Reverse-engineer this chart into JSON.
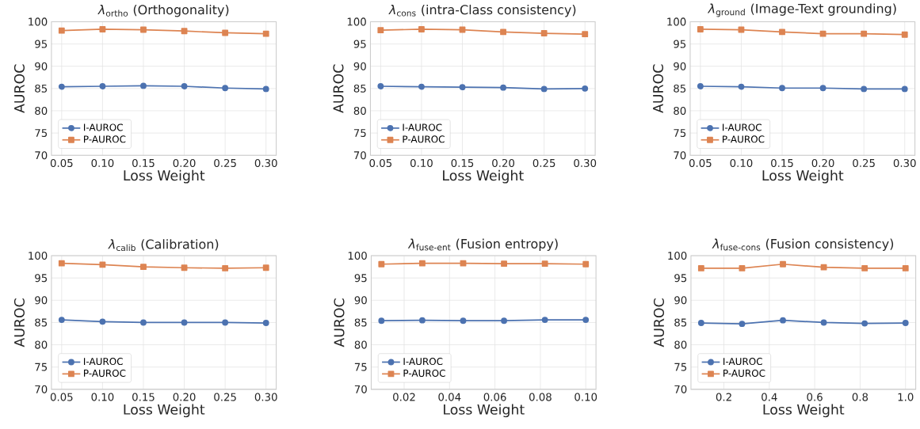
{
  "chart_data": [
    {
      "type": "line",
      "title": "*λ*$_{ortho}$ (Orthogonality)",
      "xlabel": "Loss Weight",
      "ylabel": "AUROC",
      "x": [
        0.05,
        0.1,
        0.15,
        0.2,
        0.25,
        0.3
      ],
      "xlim": [
        0.0375,
        0.3125
      ],
      "ylim": [
        70,
        100
      ],
      "xticks": [
        {
          "value": 0.05,
          "label": "0.05"
        },
        {
          "value": 0.1,
          "label": "0.10"
        },
        {
          "value": 0.15,
          "label": "0.15"
        },
        {
          "value": 0.2,
          "label": "0.20"
        },
        {
          "value": 0.25,
          "label": "0.25"
        },
        {
          "value": 0.3,
          "label": "0.30"
        }
      ],
      "yticks": [
        70,
        75,
        80,
        85,
        90,
        95,
        100
      ],
      "grid": true,
      "legend": "bottom left",
      "line_style": "solid",
      "series": [
        {
          "name": "I-AUROC",
          "color": "#4c72b0",
          "marker": "circle",
          "values": [
            85.4,
            85.5,
            85.6,
            85.5,
            85.1,
            84.9
          ]
        },
        {
          "name": "P-AUROC",
          "color": "#dd8452",
          "marker": "square",
          "values": [
            98.0,
            98.3,
            98.2,
            97.9,
            97.5,
            97.3
          ]
        }
      ]
    },
    {
      "type": "line",
      "title": "*λ*$_{cons}$ (intra-Class consistency)",
      "xlabel": "Loss Weight",
      "ylabel": "AUROC",
      "x": [
        0.05,
        0.1,
        0.15,
        0.2,
        0.25,
        0.3
      ],
      "xlim": [
        0.0375,
        0.3125
      ],
      "ylim": [
        70,
        100
      ],
      "xticks": [
        {
          "value": 0.05,
          "label": "0.05"
        },
        {
          "value": 0.1,
          "label": "0.10"
        },
        {
          "value": 0.15,
          "label": "0.15"
        },
        {
          "value": 0.2,
          "label": "0.20"
        },
        {
          "value": 0.25,
          "label": "0.25"
        },
        {
          "value": 0.3,
          "label": "0.30"
        }
      ],
      "yticks": [
        70,
        75,
        80,
        85,
        90,
        95,
        100
      ],
      "grid": true,
      "legend": "bottom left",
      "line_style": "solid",
      "series": [
        {
          "name": "I-AUROC",
          "color": "#4c72b0",
          "marker": "circle",
          "values": [
            85.5,
            85.4,
            85.3,
            85.2,
            84.9,
            85.0
          ]
        },
        {
          "name": "P-AUROC",
          "color": "#dd8452",
          "marker": "square",
          "values": [
            98.1,
            98.3,
            98.2,
            97.7,
            97.4,
            97.2
          ]
        }
      ]
    },
    {
      "type": "line",
      "title": "*λ*$_{ground}$ (Image-Text grounding)",
      "xlabel": "Loss Weight",
      "ylabel": "AUROC",
      "x": [
        0.05,
        0.1,
        0.15,
        0.2,
        0.25,
        0.3
      ],
      "xlim": [
        0.0375,
        0.3125
      ],
      "ylim": [
        70,
        100
      ],
      "xticks": [
        {
          "value": 0.05,
          "label": "0.05"
        },
        {
          "value": 0.1,
          "label": "0.10"
        },
        {
          "value": 0.15,
          "label": "0.15"
        },
        {
          "value": 0.2,
          "label": "0.20"
        },
        {
          "value": 0.25,
          "label": "0.25"
        },
        {
          "value": 0.3,
          "label": "0.30"
        }
      ],
      "yticks": [
        70,
        75,
        80,
        85,
        90,
        95,
        100
      ],
      "grid": true,
      "legend": "bottom left",
      "line_style": "solid",
      "series": [
        {
          "name": "I-AUROC",
          "color": "#4c72b0",
          "marker": "circle",
          "values": [
            85.5,
            85.4,
            85.1,
            85.1,
            84.9,
            84.9
          ]
        },
        {
          "name": "P-AUROC",
          "color": "#dd8452",
          "marker": "square",
          "values": [
            98.3,
            98.2,
            97.7,
            97.3,
            97.3,
            97.1
          ]
        }
      ]
    },
    {
      "type": "line",
      "title": "*λ*$_{calib}$ (Calibration)",
      "xlabel": "Loss Weight",
      "ylabel": "AUROC",
      "x": [
        0.05,
        0.1,
        0.15,
        0.2,
        0.25,
        0.3
      ],
      "xlim": [
        0.0375,
        0.3125
      ],
      "ylim": [
        70,
        100
      ],
      "xticks": [
        {
          "value": 0.05,
          "label": "0.05"
        },
        {
          "value": 0.1,
          "label": "0.10"
        },
        {
          "value": 0.15,
          "label": "0.15"
        },
        {
          "value": 0.2,
          "label": "0.20"
        },
        {
          "value": 0.25,
          "label": "0.25"
        },
        {
          "value": 0.3,
          "label": "0.30"
        }
      ],
      "yticks": [
        70,
        75,
        80,
        85,
        90,
        95,
        100
      ],
      "grid": true,
      "legend": "bottom left",
      "line_style": "solid",
      "series": [
        {
          "name": "I-AUROC",
          "color": "#4c72b0",
          "marker": "circle",
          "values": [
            85.6,
            85.2,
            85.0,
            85.0,
            85.0,
            84.9
          ]
        },
        {
          "name": "P-AUROC",
          "color": "#dd8452",
          "marker": "square",
          "values": [
            98.3,
            98.0,
            97.5,
            97.3,
            97.2,
            97.3
          ]
        }
      ]
    },
    {
      "type": "line",
      "title": "*λ*$_{fuse-ent}$ (Fusion entropy)",
      "xlabel": "Loss Weight",
      "ylabel": "AUROC",
      "x": [
        0.01,
        0.028,
        0.046,
        0.064,
        0.082,
        0.1
      ],
      "xlim": [
        0.0055,
        0.1045
      ],
      "ylim": [
        70,
        100
      ],
      "xticks": [
        0.02,
        0.04,
        0.06,
        0.08,
        {
          "value": 0.1,
          "label": "0.10"
        }
      ],
      "yticks": [
        70,
        75,
        80,
        85,
        90,
        95,
        100
      ],
      "grid": true,
      "legend": "bottom left",
      "line_style": "solid",
      "series": [
        {
          "name": "I-AUROC",
          "color": "#4c72b0",
          "marker": "circle",
          "values": [
            85.4,
            85.5,
            85.4,
            85.4,
            85.6,
            85.6
          ]
        },
        {
          "name": "P-AUROC",
          "color": "#dd8452",
          "marker": "square",
          "values": [
            98.1,
            98.3,
            98.3,
            98.2,
            98.2,
            98.1
          ]
        }
      ]
    },
    {
      "type": "line",
      "title": "*λ*$_{fuse-cons}$ (Fusion consistency)",
      "xlabel": "Loss Weight",
      "ylabel": "AUROC",
      "x": [
        0.1,
        0.28,
        0.46,
        0.64,
        0.82,
        1.0
      ],
      "xlim": [
        0.055,
        1.045
      ],
      "ylim": [
        70,
        100
      ],
      "xticks": [
        0.2,
        0.4,
        0.6,
        0.8,
        {
          "value": 1.0,
          "label": "1.0"
        }
      ],
      "yticks": [
        70,
        75,
        80,
        85,
        90,
        95,
        100
      ],
      "grid": true,
      "legend": "bottom left",
      "line_style": "solid",
      "series": [
        {
          "name": "I-AUROC",
          "color": "#4c72b0",
          "marker": "circle",
          "values": [
            84.9,
            84.7,
            85.5,
            85.0,
            84.8,
            84.9
          ]
        },
        {
          "name": "P-AUROC",
          "color": "#dd8452",
          "marker": "square",
          "values": [
            97.2,
            97.2,
            98.1,
            97.4,
            97.2,
            97.2
          ]
        }
      ]
    }
  ]
}
